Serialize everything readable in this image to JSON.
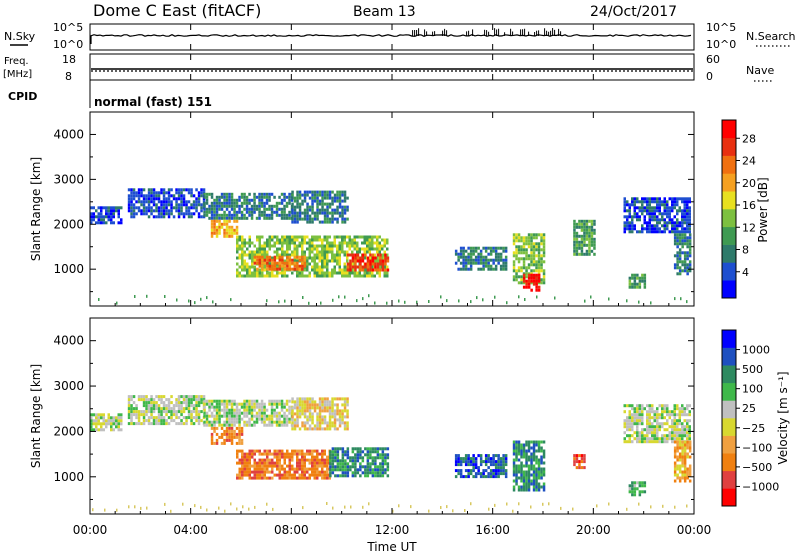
{
  "header": {
    "station": "Dome C East (fitACF)",
    "beam": "Beam 13",
    "date": "24/Oct/2017"
  },
  "strips": {
    "nsky_label": "N.Sky",
    "nsky_ticks": [
      "10^5",
      "10^0"
    ],
    "nsearch_label": "N.Search",
    "nsearch_ticks": [
      "10^5",
      "10^0"
    ],
    "freq_label": "Freq.",
    "freq_unit": "[MHz]",
    "freq_ticks": [
      "18",
      "8"
    ],
    "nave_label": "Nave",
    "nave_ticks": [
      "60",
      "0"
    ],
    "cpid_label": "CPID",
    "cpid_value": "normal (fast) 151"
  },
  "axes": {
    "ylabel": "Slant Range [km]",
    "yticks": [
      "4000",
      "3000",
      "2000",
      "1000"
    ],
    "xlabel": "Time UT",
    "xticks": [
      "00:00",
      "04:00",
      "08:00",
      "12:00",
      "16:00",
      "20:00",
      "00:00"
    ]
  },
  "colors": {
    "power": [
      "#0000ff",
      "#1e4fd0",
      "#2e7a6a",
      "#3f9a52",
      "#7dc040",
      "#e8e020",
      "#f5a020",
      "#f07010",
      "#e83010",
      "#ff0000"
    ],
    "velocity": [
      "#ff0000",
      "#e04040",
      "#f08010",
      "#f0a040",
      "#d8d830",
      "#c0c0c0",
      "#3fb84a",
      "#2e8a60",
      "#1e50c0",
      "#0000ff"
    ]
  },
  "chart_data": [
    {
      "type": "heatmap",
      "name": "power",
      "colorbar_label": "Power [dB]",
      "colorbar_ticks": [
        "28",
        "24",
        "20",
        "16",
        "12",
        "8",
        "4"
      ],
      "xlim_hours": [
        0,
        24
      ],
      "ylim_km": [
        180,
        4500
      ],
      "regions": [
        {
          "t0": 0.0,
          "t1": 1.2,
          "r0": 2050,
          "r1": 2400,
          "level": 1
        },
        {
          "t0": 1.5,
          "t1": 4.5,
          "r0": 2150,
          "r1": 2800,
          "level": 1
        },
        {
          "t0": 4.5,
          "t1": 8.0,
          "r0": 2150,
          "r1": 2700,
          "level": 2
        },
        {
          "t0": 8.0,
          "t1": 10.2,
          "r0": 2050,
          "r1": 2750,
          "level": 2
        },
        {
          "t0": 4.8,
          "t1": 5.8,
          "r0": 1750,
          "r1": 2100,
          "level": 6
        },
        {
          "t0": 5.8,
          "t1": 11.8,
          "r0": 850,
          "r1": 1750,
          "level": 4
        },
        {
          "t0": 6.5,
          "t1": 8.5,
          "r0": 1000,
          "r1": 1300,
          "level": 7
        },
        {
          "t0": 10.2,
          "t1": 11.8,
          "r0": 1000,
          "r1": 1350,
          "level": 8
        },
        {
          "t0": 14.5,
          "t1": 16.5,
          "r0": 1000,
          "r1": 1500,
          "level": 2
        },
        {
          "t0": 16.8,
          "t1": 18.0,
          "r0": 700,
          "r1": 1800,
          "level": 4
        },
        {
          "t0": 17.2,
          "t1": 17.8,
          "r0": 550,
          "r1": 900,
          "level": 9
        },
        {
          "t0": 19.2,
          "t1": 20.0,
          "r0": 1300,
          "r1": 2100,
          "level": 3
        },
        {
          "t0": 21.2,
          "t1": 23.8,
          "r0": 1800,
          "r1": 2600,
          "level": 1
        },
        {
          "t0": 21.4,
          "t1": 22.0,
          "r0": 600,
          "r1": 900,
          "level": 3
        },
        {
          "t0": 23.2,
          "t1": 23.8,
          "r0": 900,
          "r1": 1800,
          "level": 2
        }
      ]
    },
    {
      "type": "heatmap",
      "name": "velocity",
      "colorbar_label": "Velocity [m s⁻¹]",
      "colorbar_ticks": [
        "1000",
        "500",
        "100",
        "25",
        "−25",
        "−100",
        "−500",
        "−1000"
      ],
      "xlim_hours": [
        0,
        24
      ],
      "ylim_km": [
        180,
        4500
      ],
      "regions": [
        {
          "t0": 0.0,
          "t1": 1.2,
          "r0": 2050,
          "r1": 2400,
          "level": 5
        },
        {
          "t0": 1.5,
          "t1": 4.5,
          "r0": 2150,
          "r1": 2800,
          "level": 5
        },
        {
          "t0": 4.5,
          "t1": 8.0,
          "r0": 2150,
          "r1": 2700,
          "level": 5
        },
        {
          "t0": 8.0,
          "t1": 10.2,
          "r0": 2050,
          "r1": 2750,
          "level": 4
        },
        {
          "t0": 4.8,
          "t1": 6.0,
          "r0": 1750,
          "r1": 2100,
          "level": 2
        },
        {
          "t0": 5.8,
          "t1": 9.5,
          "r0": 1000,
          "r1": 1600,
          "level": 2
        },
        {
          "t0": 9.5,
          "t1": 11.8,
          "r0": 1000,
          "r1": 1650,
          "level": 7
        },
        {
          "t0": 14.5,
          "t1": 16.5,
          "r0": 1000,
          "r1": 1500,
          "level": 8
        },
        {
          "t0": 16.8,
          "t1": 18.0,
          "r0": 700,
          "r1": 1800,
          "level": 7
        },
        {
          "t0": 19.2,
          "t1": 19.6,
          "r0": 1200,
          "r1": 1500,
          "level": 1
        },
        {
          "t0": 21.2,
          "t1": 23.8,
          "r0": 1800,
          "r1": 2600,
          "level": 5
        },
        {
          "t0": 21.4,
          "t1": 22.0,
          "r0": 600,
          "r1": 900,
          "level": 6
        },
        {
          "t0": 23.2,
          "t1": 23.8,
          "r0": 900,
          "r1": 1800,
          "level": 3
        }
      ]
    }
  ]
}
